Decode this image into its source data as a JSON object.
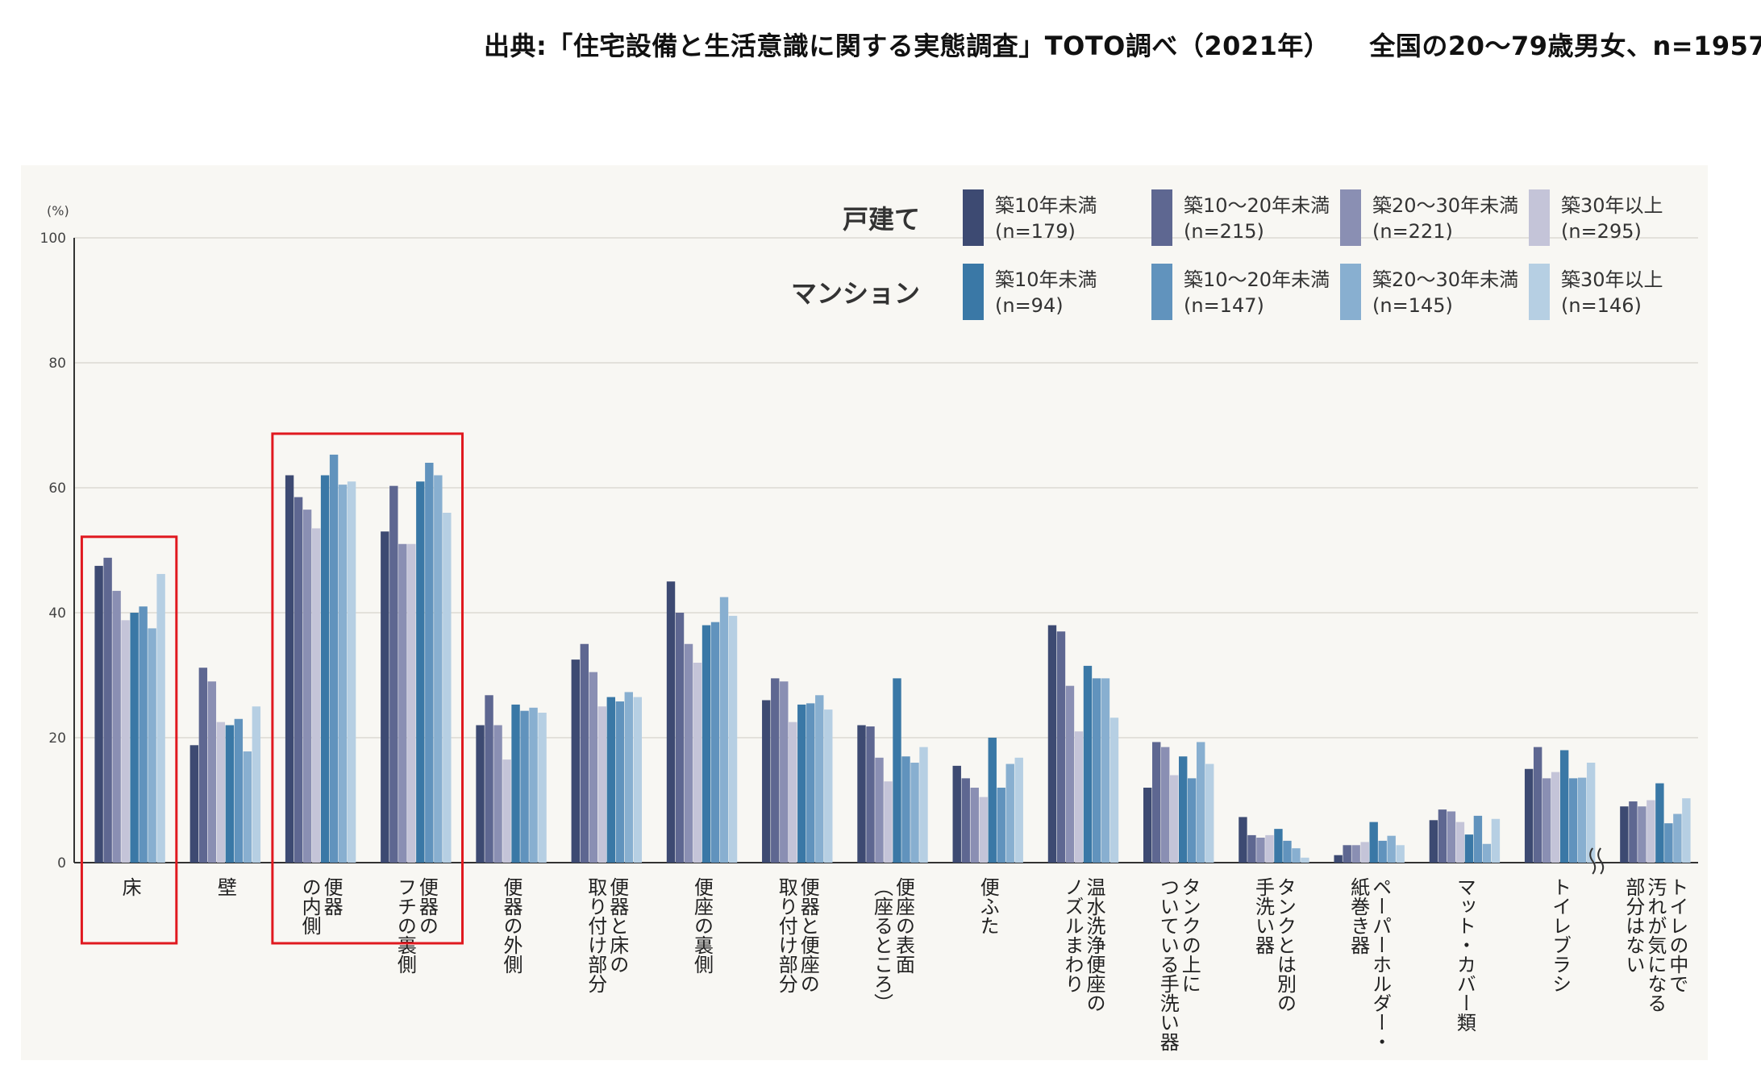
{
  "source_text": "出典:「住宅設備と生活意識に関する実態調査」TOTO調べ（2021年）　　全国の20〜79歳男女、n=1957",
  "chart_data": {
    "type": "bar",
    "y_unit": "(%)",
    "ylim": [
      0,
      100
    ],
    "yticks": [
      0,
      20,
      40,
      60,
      80,
      100
    ],
    "grid": true,
    "legend_position": "top-right",
    "legend_groups": [
      {
        "label": "戸建て",
        "series_index": [
          0,
          1,
          2,
          3
        ]
      },
      {
        "label": "マンション",
        "series_index": [
          4,
          5,
          6,
          7
        ]
      }
    ],
    "categories": [
      "床",
      "壁",
      "便器の内側",
      "便器のフチの裏側",
      "便器の外側",
      "便器と床の取り付け部分",
      "便座の裏側",
      "便器と便座の取り付け部分",
      "便座の表面（座るところ）",
      "便ふた",
      "温水洗浄便座のノズルまわり",
      "タンクの上についている手洗い器",
      "タンクとは別の手洗い器",
      "紙巻き器（ペーパーホルダー）",
      "マット・カバー類",
      "トイレブラシ",
      "トイレの中で汚れが気になる部分はない"
    ],
    "category_label_columns": [
      [
        "床"
      ],
      [
        "壁"
      ],
      [
        "便器",
        "の内側"
      ],
      [
        "便器の",
        "フチの裏側"
      ],
      [
        "便器の外側"
      ],
      [
        "便器と床の",
        "取り付け部分"
      ],
      [
        "便座の裏側"
      ],
      [
        "便器と便座の",
        "取り付け部分"
      ],
      [
        "便座の表面",
        "（座るところ）"
      ],
      [
        "便ふた"
      ],
      [
        "温水洗浄便座の",
        "ノズルまわり"
      ],
      [
        "タンクの上に",
        "ついている手洗い器"
      ],
      [
        "タンクとは別の",
        "手洗い器"
      ],
      [
        "ペーパーホルダー・",
        "紙巻き器"
      ],
      [
        "マット・カバー類"
      ],
      [
        "トイレブラシ"
      ],
      [
        "トイレの中で",
        "汚れが気になる",
        "部分はない"
      ]
    ],
    "series": [
      {
        "name": "築10年未満",
        "n": "(n=179)",
        "color": "#3d4a72",
        "values": [
          47.5,
          18.8,
          62.0,
          53.0,
          22.0,
          32.5,
          45.0,
          26.0,
          22.0,
          15.5,
          38.0,
          12.0,
          7.3,
          1.2,
          6.8,
          15.0,
          9.0
        ]
      },
      {
        "name": "築10〜20年未満",
        "n": "(n=215)",
        "color": "#5e6791",
        "values": [
          48.8,
          31.2,
          58.5,
          60.3,
          26.8,
          35.0,
          40.0,
          29.5,
          21.8,
          13.5,
          37.0,
          19.3,
          4.4,
          2.8,
          8.5,
          18.5,
          9.8
        ]
      },
      {
        "name": "築20〜30年未満",
        "n": "(n=221)",
        "color": "#8a8fb3",
        "values": [
          43.5,
          29.0,
          56.5,
          51.0,
          22.0,
          30.5,
          35.0,
          29.0,
          16.8,
          12.0,
          28.3,
          18.5,
          4.0,
          2.8,
          8.2,
          13.5,
          9.0
        ]
      },
      {
        "name": "築30年以上",
        "n": "(n=295)",
        "color": "#c4c4d8",
        "values": [
          38.8,
          22.5,
          53.5,
          51.0,
          16.5,
          25.0,
          32.0,
          22.5,
          13.0,
          10.5,
          21.0,
          14.0,
          4.4,
          3.3,
          6.5,
          14.5,
          10.0
        ]
      },
      {
        "name": "築10年未満",
        "n": "(n=94)",
        "color": "#3a78a6",
        "values": [
          40.0,
          22.0,
          62.0,
          61.0,
          25.3,
          26.5,
          38.0,
          25.3,
          29.5,
          20.0,
          31.5,
          17.0,
          5.4,
          6.5,
          4.5,
          18.0,
          12.7
        ]
      },
      {
        "name": "築10〜20年未満",
        "n": "(n=147)",
        "color": "#6193bd",
        "values": [
          41.0,
          23.0,
          65.3,
          64.0,
          24.3,
          25.8,
          38.5,
          25.5,
          17.0,
          12.0,
          29.5,
          13.5,
          3.5,
          3.5,
          7.5,
          13.5,
          6.3
        ]
      },
      {
        "name": "築20〜30年未満",
        "n": "(n=145)",
        "color": "#88afd0",
        "values": [
          37.5,
          17.8,
          60.5,
          62.0,
          24.8,
          27.3,
          42.5,
          26.8,
          16.0,
          15.8,
          29.5,
          19.3,
          2.3,
          4.3,
          3.0,
          13.6,
          7.8
        ]
      },
      {
        "name": "築30年以上",
        "n": "(n=146)",
        "color": "#b6cfe3",
        "values": [
          46.2,
          25.0,
          61.0,
          56.0,
          24.0,
          26.5,
          39.5,
          24.5,
          18.5,
          16.8,
          23.2,
          15.8,
          0.8,
          2.8,
          7.0,
          16.0,
          10.3
        ]
      }
    ],
    "highlight_color": "#e0191f",
    "highlight_groups": [
      [
        0
      ],
      [
        2,
        3
      ]
    ],
    "axis_break_before": 16
  }
}
